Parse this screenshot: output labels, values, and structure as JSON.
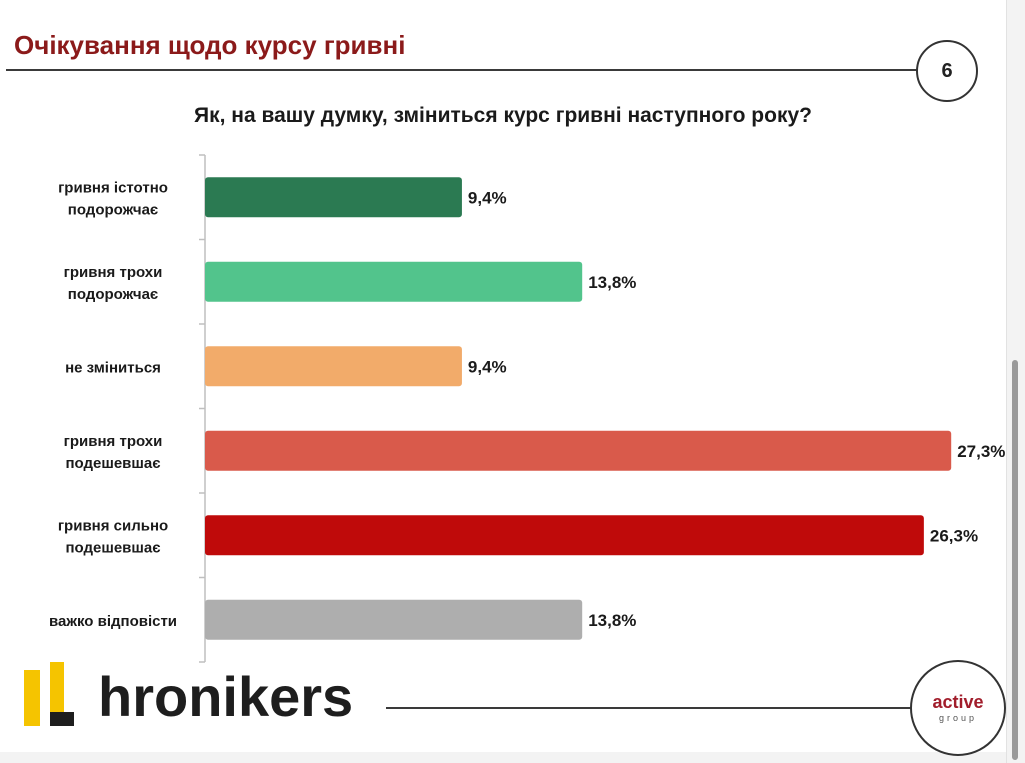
{
  "slide": {
    "title": "Очікування щодо курсу гривні",
    "page_number": "6"
  },
  "chart_data": {
    "type": "bar",
    "orientation": "horizontal",
    "title": "Як, на вашу думку, зміниться курс гривні наступного року?",
    "categories": [
      [
        "гривня істотно",
        "подорожчає"
      ],
      [
        "гривня трохи",
        "подорожчає"
      ],
      [
        "не зміниться"
      ],
      [
        "гривня трохи",
        "подешевшає"
      ],
      [
        "гривня сильно",
        "подешевшає"
      ],
      [
        "важко відповісти"
      ]
    ],
    "values": [
      9.4,
      13.8,
      9.4,
      27.3,
      26.3,
      13.8
    ],
    "value_labels": [
      "9,4%",
      "13,8%",
      "9,4%",
      "27,3%",
      "26,3%",
      "13,8%"
    ],
    "colors": [
      "#2b7a52",
      "#52c48c",
      "#f2ab6a",
      "#d95a4b",
      "#bf0a0a",
      "#aeaeae"
    ],
    "xlim": [
      0,
      30
    ],
    "grid": false,
    "legend": "none"
  },
  "footer": {
    "brand": "hronikers",
    "brand_colors": {
      "mark": "#f5c400",
      "text": "#1e1e1e"
    },
    "partner_word_1": "active",
    "partner_word_2": "group"
  }
}
